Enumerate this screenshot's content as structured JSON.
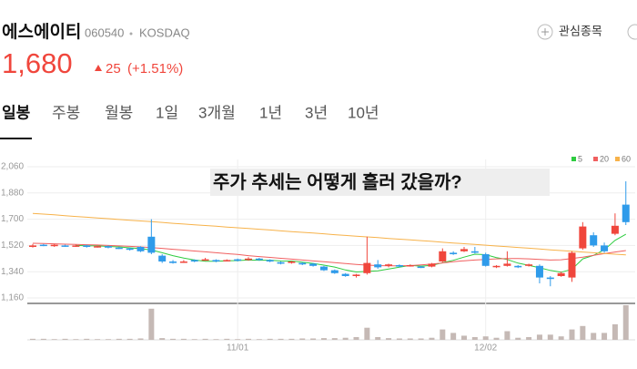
{
  "header": {
    "name": "에스에이티",
    "code": "060540",
    "market": "KOSDAQ",
    "price": "1,680",
    "change": "25",
    "change_pct": "(+1.51%)",
    "watch": "관심종목"
  },
  "tabs": [
    "일봉",
    "주봉",
    "월봉",
    "1일",
    "3개월",
    "1년",
    "3년",
    "10년"
  ],
  "chart_data": {
    "type": "candlestick",
    "annotation": "주가 추세는 어떻게 흘러 갔을까?",
    "categories": [
      null,
      null,
      null,
      null,
      null,
      null,
      null,
      null,
      null,
      null,
      null,
      null,
      null,
      null,
      null,
      null,
      null,
      null,
      null,
      "11/01",
      null,
      null,
      null,
      null,
      null,
      null,
      null,
      null,
      null,
      null,
      null,
      null,
      null,
      null,
      null,
      null,
      null,
      null,
      null,
      null,
      null,
      null,
      "12/02",
      null,
      null,
      null,
      null,
      null,
      null,
      null,
      null,
      null,
      null,
      null,
      null,
      null
    ],
    "open": [
      1510,
      1525,
      1515,
      1520,
      1515,
      1520,
      1510,
      1515,
      1505,
      1500,
      1510,
      1580,
      1450,
      1410,
      1405,
      1420,
      1420,
      1420,
      1415,
      1425,
      1420,
      1430,
      1420,
      1405,
      1400,
      1400,
      1395,
      1375,
      1350,
      1325,
      1310,
      1330,
      1390,
      1380,
      1385,
      1380,
      1375,
      1375,
      1410,
      1470,
      1480,
      1480,
      1460,
      1375,
      1380,
      1380,
      1380,
      1380,
      1300,
      1310,
      1300,
      1500,
      1590,
      1520,
      1600,
      1800
    ],
    "high": [
      1530,
      1530,
      1530,
      1525,
      1525,
      1525,
      1520,
      1520,
      1510,
      1505,
      1515,
      1700,
      1460,
      1420,
      1420,
      1425,
      1435,
      1425,
      1425,
      1430,
      1440,
      1435,
      1425,
      1410,
      1415,
      1405,
      1400,
      1380,
      1355,
      1330,
      1325,
      1580,
      1420,
      1395,
      1390,
      1390,
      1380,
      1400,
      1500,
      1480,
      1510,
      1510,
      1470,
      1385,
      1480,
      1385,
      1395,
      1390,
      1310,
      1340,
      1480,
      1680,
      1610,
      1540,
      1740,
      1960
    ],
    "low": [
      1505,
      1515,
      1510,
      1510,
      1510,
      1505,
      1505,
      1500,
      1495,
      1485,
      1475,
      1460,
      1400,
      1395,
      1400,
      1405,
      1415,
      1405,
      1410,
      1410,
      1415,
      1415,
      1405,
      1390,
      1395,
      1385,
      1375,
      1345,
      1325,
      1305,
      1300,
      1320,
      1360,
      1370,
      1370,
      1375,
      1365,
      1370,
      1405,
      1455,
      1475,
      1465,
      1375,
      1365,
      1375,
      1365,
      1375,
      1260,
      1240,
      1305,
      1270,
      1490,
      1510,
      1470,
      1590,
      1660
    ],
    "close": [
      1520,
      1520,
      1525,
      1515,
      1520,
      1510,
      1515,
      1505,
      1500,
      1490,
      1480,
      1470,
      1410,
      1400,
      1410,
      1410,
      1425,
      1410,
      1420,
      1415,
      1430,
      1420,
      1410,
      1395,
      1410,
      1390,
      1380,
      1350,
      1330,
      1310,
      1320,
      1400,
      1370,
      1390,
      1375,
      1385,
      1370,
      1395,
      1480,
      1460,
      1495,
      1470,
      1380,
      1380,
      1395,
      1370,
      1390,
      1300,
      1290,
      1330,
      1470,
      1650,
      1520,
      1480,
      1655,
      1680
    ],
    "up_color": "#f0463c",
    "down_color": "#2f9bea",
    "series": [
      {
        "name": "5",
        "color": "#2ecc40",
        "values": [
          null,
          null,
          null,
          null,
          1520,
          1518,
          1517,
          1513,
          1510,
          1504,
          1498,
          1489,
          1470,
          1450,
          1434,
          1420,
          1411,
          1411,
          1415,
          1416,
          1420,
          1419,
          1419,
          1414,
          1413,
          1405,
          1397,
          1385,
          1372,
          1352,
          1338,
          1342,
          1346,
          1358,
          1371,
          1384,
          1378,
          1383,
          1401,
          1418,
          1440,
          1460,
          1457,
          1437,
          1424,
          1399,
          1383,
          1367,
          1349,
          1336,
          1356,
          1428,
          1452,
          1490,
          1555,
          1597
        ]
      },
      {
        "name": "20",
        "color": "#f06060",
        "values": [
          1535,
          1533,
          1531,
          1529,
          1527,
          1525,
          1523,
          1520,
          1517,
          1514,
          1510,
          1505,
          1500,
          1494,
          1488,
          1482,
          1476,
          1470,
          1464,
          1458,
          1450,
          1444,
          1438,
          1432,
          1426,
          1420,
          1414,
          1408,
          1402,
          1396,
          1390,
          1385,
          1382,
          1380,
          1380,
          1382,
          1386,
          1392,
          1400,
          1408,
          1415,
          1420,
          1424,
          1428,
          1430,
          1430,
          1428,
          1424,
          1420,
          1422,
          1430,
          1440,
          1452,
          1464,
          1475,
          1485
        ]
      },
      {
        "name": "60",
        "color": "#f7b24a",
        "values": [
          1740,
          1735,
          1730,
          1724,
          1719,
          1714,
          1709,
          1704,
          1698,
          1693,
          1688,
          1683,
          1678,
          1672,
          1667,
          1662,
          1657,
          1652,
          1646,
          1641,
          1636,
          1631,
          1626,
          1620,
          1615,
          1610,
          1605,
          1600,
          1594,
          1589,
          1584,
          1579,
          1574,
          1568,
          1563,
          1558,
          1553,
          1548,
          1542,
          1537,
          1532,
          1527,
          1522,
          1516,
          1511,
          1506,
          1501,
          1496,
          1490,
          1485,
          1480,
          1475,
          1470,
          1465,
          1460,
          1455
        ]
      }
    ],
    "volume": [
      3,
      3,
      2,
      3,
      2,
      3,
      2,
      2,
      3,
      3,
      4,
      90,
      5,
      3,
      3,
      2,
      3,
      2,
      3,
      2,
      3,
      2,
      3,
      3,
      3,
      4,
      4,
      5,
      5,
      6,
      8,
      35,
      8,
      5,
      4,
      4,
      4,
      6,
      30,
      20,
      12,
      8,
      10,
      6,
      25,
      6,
      8,
      15,
      15,
      10,
      30,
      40,
      20,
      20,
      45,
      100
    ],
    "volume_color": "#c5b9b5",
    "volume_ylim": [
      0,
      100
    ],
    "ylim": [
      1160,
      2060
    ],
    "yticks": [
      {
        "value": 1160,
        "label": "1,160"
      },
      {
        "value": 1340,
        "label": "1,340"
      },
      {
        "value": 1520,
        "label": "1,520"
      },
      {
        "value": 1700,
        "label": "1,700"
      },
      {
        "value": 1880,
        "label": "1,880"
      },
      {
        "value": 2060,
        "label": "2,060"
      }
    ],
    "grid": true
  }
}
